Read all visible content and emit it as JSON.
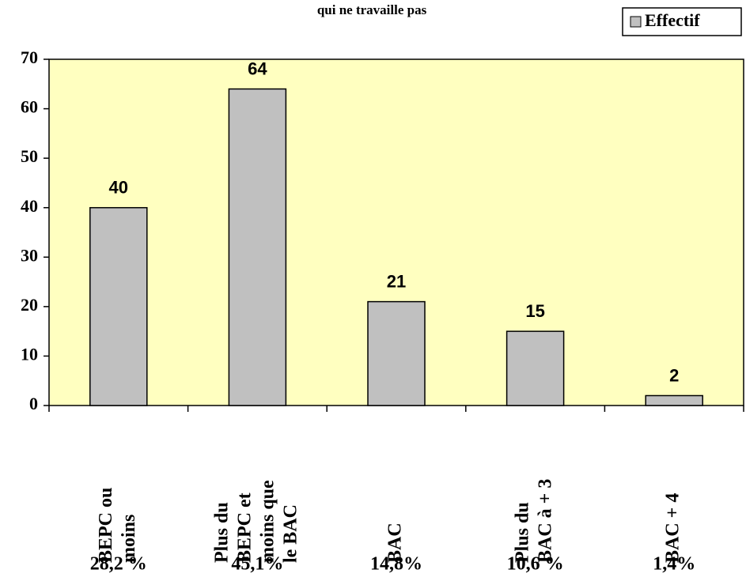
{
  "chart_data": {
    "type": "bar",
    "title": "qui ne travaille pas",
    "categories": [
      [
        "BEPC  ou",
        "moins"
      ],
      [
        "Plus du",
        "BEPC et",
        "moins que",
        "le BAC"
      ],
      [
        "BAC"
      ],
      [
        "Plus du",
        "BAC à + 3"
      ],
      [
        "BAC + 4"
      ]
    ],
    "values": [
      40,
      64,
      21,
      15,
      2
    ],
    "percent_labels": [
      "28,2 %",
      "45,1%",
      "14,8%",
      "10,6 %",
      "1,4%"
    ],
    "series_name": "Effectif",
    "color": "#c0c0c0",
    "plot_background": "#ffffc0",
    "ylim": [
      0,
      70
    ],
    "yticks": [
      0,
      10,
      20,
      30,
      40,
      50,
      60,
      70
    ],
    "legend": "top-right"
  }
}
